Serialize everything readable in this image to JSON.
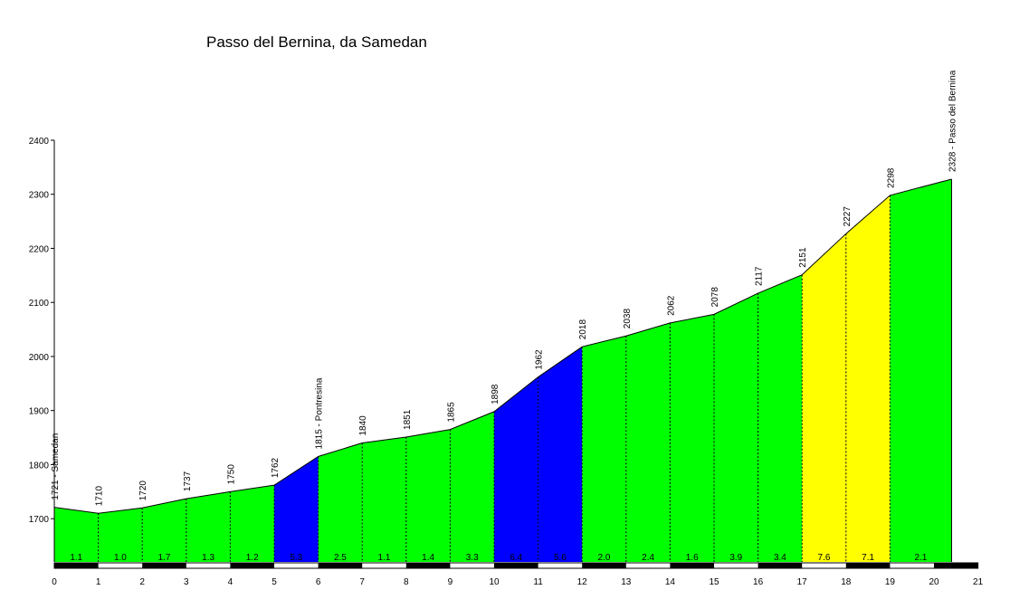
{
  "chart_data": {
    "type": "area",
    "title": "Passo del Bernina, da Samedan",
    "xlabel": "",
    "ylabel": "",
    "xlim": [
      0,
      21
    ],
    "ylim": [
      1620,
      2400
    ],
    "x_ticks": [
      0,
      1,
      2,
      3,
      4,
      5,
      6,
      7,
      8,
      9,
      10,
      11,
      12,
      13,
      14,
      15,
      16,
      17,
      18,
      19,
      20,
      21
    ],
    "y_ticks": [
      1700,
      1800,
      1900,
      2000,
      2100,
      2200,
      2300,
      2400
    ],
    "points": [
      {
        "x": 0,
        "y": 1721,
        "label": "1721 - Samedan"
      },
      {
        "x": 1,
        "y": 1710,
        "label": "1710"
      },
      {
        "x": 2,
        "y": 1720,
        "label": "1720"
      },
      {
        "x": 3,
        "y": 1737,
        "label": "1737"
      },
      {
        "x": 4,
        "y": 1750,
        "label": "1750"
      },
      {
        "x": 5,
        "y": 1762,
        "label": "1762"
      },
      {
        "x": 6,
        "y": 1815,
        "label": "1815 - Pontresina"
      },
      {
        "x": 7,
        "y": 1840,
        "label": "1840"
      },
      {
        "x": 8,
        "y": 1851,
        "label": "1851"
      },
      {
        "x": 9,
        "y": 1865,
        "label": "1865"
      },
      {
        "x": 10,
        "y": 1898,
        "label": "1898"
      },
      {
        "x": 11,
        "y": 1962,
        "label": "1962"
      },
      {
        "x": 12,
        "y": 2018,
        "label": "2018"
      },
      {
        "x": 13,
        "y": 2038,
        "label": "2038"
      },
      {
        "x": 14,
        "y": 2062,
        "label": "2062"
      },
      {
        "x": 15,
        "y": 2078,
        "label": "2078"
      },
      {
        "x": 16,
        "y": 2117,
        "label": "2117"
      },
      {
        "x": 17,
        "y": 2151,
        "label": "2151"
      },
      {
        "x": 18,
        "y": 2227,
        "label": "2227"
      },
      {
        "x": 19,
        "y": 2298,
        "label": "2298"
      },
      {
        "x": 20.4,
        "y": 2328,
        "label": "2328 - Passo del Bernina"
      }
    ],
    "segments": [
      {
        "gradient": "1.1",
        "color": "#00ff00"
      },
      {
        "gradient": "1.0",
        "color": "#00ff00"
      },
      {
        "gradient": "1.7",
        "color": "#00ff00"
      },
      {
        "gradient": "1.3",
        "color": "#00ff00"
      },
      {
        "gradient": "1.2",
        "color": "#00ff00"
      },
      {
        "gradient": "5.3",
        "color": "#0000ff"
      },
      {
        "gradient": "2.5",
        "color": "#00ff00"
      },
      {
        "gradient": "1.1",
        "color": "#00ff00"
      },
      {
        "gradient": "1.4",
        "color": "#00ff00"
      },
      {
        "gradient": "3.3",
        "color": "#00ff00"
      },
      {
        "gradient": "6.4",
        "color": "#0000ff"
      },
      {
        "gradient": "5.6",
        "color": "#0000ff"
      },
      {
        "gradient": "2.0",
        "color": "#00ff00"
      },
      {
        "gradient": "2.4",
        "color": "#00ff00"
      },
      {
        "gradient": "1.6",
        "color": "#00ff00"
      },
      {
        "gradient": "3.9",
        "color": "#00ff00"
      },
      {
        "gradient": "3.4",
        "color": "#00ff00"
      },
      {
        "gradient": "7.6",
        "color": "#ffff00"
      },
      {
        "gradient": "7.1",
        "color": "#ffff00"
      },
      {
        "gradient": "2.1",
        "color": "#00ff00"
      }
    ],
    "grid": false
  }
}
